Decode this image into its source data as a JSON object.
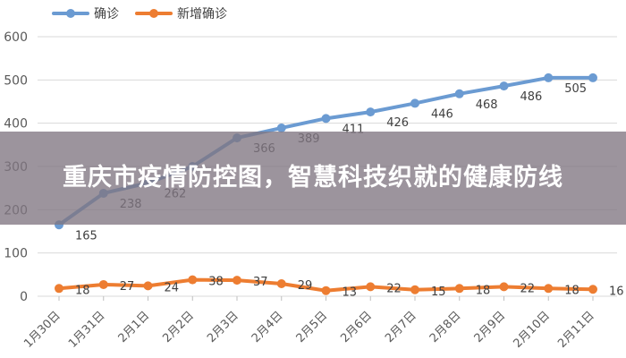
{
  "chart_data": {
    "type": "line",
    "categories": [
      "1月30日",
      "1月31日",
      "2月1日",
      "2月2日",
      "2月3日",
      "2月4日",
      "2月5日",
      "2月6日",
      "2月7日",
      "2月8日",
      "2月9日",
      "2月10日",
      "2月11日"
    ],
    "yticks": [
      0,
      100,
      200,
      300,
      400,
      500,
      600
    ],
    "ylim": [
      0,
      600
    ],
    "grid": true,
    "legend_position": "top-left",
    "series": [
      {
        "name": "确诊",
        "color": "#6b9bd2",
        "values": [
          165,
          238,
          262,
          300,
          366,
          389,
          411,
          426,
          446,
          468,
          486,
          505,
          505
        ],
        "labels": [
          "165",
          "238",
          "262",
          "",
          "366",
          "389",
          "411",
          "426",
          "446",
          "468",
          "486",
          "505",
          ""
        ]
      },
      {
        "name": "新增确诊",
        "color": "#ed7d31",
        "values": [
          18,
          27,
          24,
          38,
          37,
          29,
          13,
          22,
          15,
          18,
          22,
          18,
          16
        ],
        "labels": [
          "18",
          "27",
          "24",
          "38",
          "37",
          "29",
          "13",
          "22",
          "15",
          "18",
          "22",
          "18",
          "16"
        ]
      }
    ]
  },
  "overlay": {
    "title": "重庆市疫情防控图，智慧科技织就的健康防线"
  }
}
